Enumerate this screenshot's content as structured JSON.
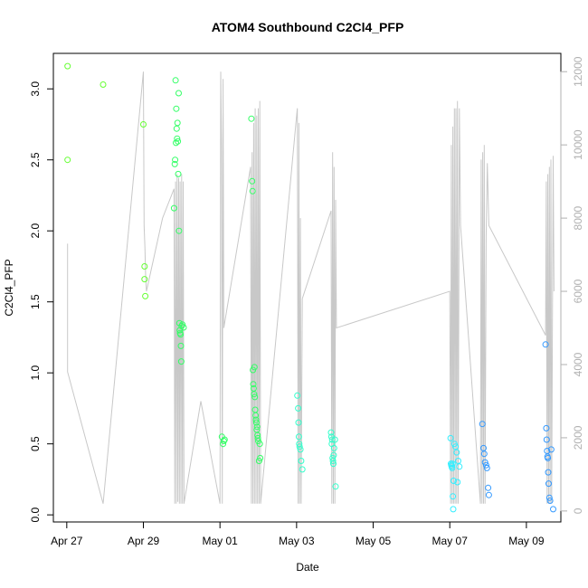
{
  "chart_data": {
    "type": "scatter",
    "title": "ATOM4 Southbound C2Cl4_PFP",
    "xlabel": "Date",
    "ylabel": "C2Cl4_PFP",
    "x_ticks": [
      "Apr 27",
      "Apr 29",
      "May 01",
      "May 03",
      "May 05",
      "May 07",
      "May 09"
    ],
    "x_tick_days": [
      0,
      2,
      4,
      6,
      8,
      10,
      12
    ],
    "xlim_days": [
      -0.35,
      12.9
    ],
    "ylim": [
      -0.05,
      3.25
    ],
    "y_ticks": [
      0.0,
      0.5,
      1.0,
      1.5,
      2.0,
      2.5,
      3.0
    ],
    "y_tick_labels": [
      "0.0",
      "0.5",
      "1.0",
      "1.5",
      "2.0",
      "2.5",
      "3.0"
    ],
    "y2lim": [
      -300,
      12500
    ],
    "y2_ticks": [
      0,
      2000,
      4000,
      6000,
      8000,
      10000,
      12000
    ],
    "y2_tick_labels": [
      "0",
      "2000",
      "4000",
      "6000",
      "8000",
      "10000",
      "12000"
    ],
    "grid": false,
    "colors": {
      "secondary_line": "#c8c8c8",
      "axis": "#000000",
      "right_axis": "#b0b0b0",
      "point_scale": [
        "#66ff33",
        "#33ff66",
        "#33ffcc",
        "#33eeff",
        "#3399ff"
      ]
    },
    "series": [
      {
        "values_x": [
          0.02,
          0.02,
          0.95,
          2.0,
          2.03,
          2.03,
          2.05,
          2.8,
          2.82,
          2.83,
          2.84,
          2.85,
          2.86,
          2.87,
          2.88,
          2.89,
          2.9,
          2.91,
          2.92,
          2.93,
          2.94,
          2.95,
          2.96,
          2.97,
          2.98,
          2.99,
          3.0,
          3.02,
          3.05,
          4.05,
          4.08,
          4.1,
          4.12,
          4.82,
          4.84,
          4.85,
          4.86,
          4.87,
          4.88,
          4.89,
          4.9,
          4.91,
          4.92,
          4.93,
          4.94,
          4.95,
          4.96,
          4.97,
          4.98,
          4.99,
          5.0,
          5.02,
          5.04,
          5.05,
          6.02,
          6.04,
          6.05,
          6.06,
          6.07,
          6.08,
          6.1,
          6.12,
          6.15,
          6.9,
          6.91,
          6.92,
          6.93,
          6.94,
          6.95,
          6.96,
          6.97,
          6.98,
          7.0,
          7.02,
          10.02,
          10.03,
          10.04,
          10.05,
          10.06,
          10.07,
          10.08,
          10.09,
          10.1,
          10.12,
          10.15,
          10.18,
          10.2,
          10.22,
          10.25,
          10.85,
          10.88,
          10.9,
          10.92,
          10.95,
          10.97,
          11.0,
          11.02,
          12.5,
          12.52,
          12.53,
          12.54,
          12.55,
          12.56,
          12.57,
          12.58,
          12.6,
          12.62,
          12.65,
          12.7
        ],
        "values_y": [
          3.16,
          2.5,
          3.03,
          2.75,
          1.75,
          1.66,
          1.54,
          2.16,
          2.47,
          2.5,
          3.06,
          2.62,
          2.86,
          2.72,
          2.65,
          2.76,
          2.63,
          2.4,
          2.97,
          2.0,
          1.35,
          1.3,
          1.28,
          1.27,
          1.19,
          1.08,
          1.33,
          1.34,
          1.32,
          0.55,
          0.5,
          0.52,
          0.53,
          2.79,
          2.35,
          2.28,
          1.02,
          0.92,
          0.89,
          0.85,
          1.04,
          0.83,
          0.74,
          0.7,
          0.67,
          0.65,
          0.6,
          0.62,
          0.56,
          0.54,
          0.52,
          0.38,
          0.5,
          0.4,
          0.84,
          0.75,
          0.65,
          0.55,
          0.5,
          0.48,
          0.46,
          0.38,
          0.32,
          0.58,
          0.55,
          0.5,
          0.53,
          0.4,
          0.38,
          0.36,
          0.42,
          0.47,
          0.53,
          0.2,
          0.54,
          0.36,
          0.35,
          0.34,
          0.33,
          0.36,
          0.13,
          0.04,
          0.24,
          0.5,
          0.48,
          0.44,
          0.23,
          0.38,
          0.34,
          0.64,
          0.47,
          0.43,
          0.37,
          0.35,
          0.33,
          0.19,
          0.14,
          1.2,
          0.61,
          0.53,
          0.45,
          0.41,
          0.4,
          0.3,
          0.22,
          0.12,
          0.1,
          0.46,
          0.04
        ]
      }
    ],
    "secondary_line": {
      "axis": "right",
      "x": [
        0.02,
        0.02,
        0.02,
        0.95,
        0.95,
        2.0,
        2.02,
        2.04,
        2.06,
        2.08,
        2.5,
        2.8,
        2.82,
        2.84,
        2.86,
        2.88,
        2.9,
        2.92,
        2.94,
        2.96,
        2.98,
        3.0,
        3.02,
        3.04,
        3.06,
        3.5,
        4.0,
        4.02,
        4.04,
        4.06,
        4.08,
        4.1,
        4.8,
        4.82,
        4.84,
        4.86,
        4.88,
        4.9,
        4.92,
        4.94,
        4.96,
        4.98,
        5.0,
        5.02,
        5.04,
        5.06,
        6.0,
        6.02,
        6.04,
        6.06,
        6.08,
        6.1,
        6.12,
        6.15,
        6.9,
        6.92,
        6.94,
        6.96,
        6.98,
        7.0,
        7.02,
        7.04,
        10.0,
        10.02,
        10.04,
        10.06,
        10.08,
        10.1,
        10.12,
        10.14,
        10.16,
        10.18,
        10.2,
        10.22,
        10.25,
        10.28,
        10.8,
        10.82,
        10.84,
        10.86,
        10.88,
        10.9,
        10.92,
        10.95,
        10.98,
        11.02,
        12.5,
        12.52,
        12.54,
        12.56,
        12.58,
        12.6,
        12.62,
        12.64,
        12.66,
        12.7,
        12.72
      ],
      "y": [
        7300,
        7300,
        3800,
        200,
        200,
        12000,
        7800,
        7200,
        6400,
        6000,
        8000,
        8800,
        200,
        9000,
        200,
        9200,
        250,
        9100,
        200,
        9000,
        200,
        9200,
        200,
        9000,
        200,
        3000,
        200,
        12000,
        10000,
        200,
        11800,
        5000,
        9400,
        200,
        9800,
        200,
        10600,
        200,
        11000,
        200,
        10800,
        200,
        11000,
        200,
        11200,
        200,
        10800,
        11000,
        200,
        10600,
        200,
        8000,
        200,
        5800,
        8200,
        200,
        9800,
        200,
        9400,
        200,
        8500,
        5000,
        6000,
        200,
        10000,
        200,
        10500,
        200,
        11000,
        200,
        11000,
        200,
        11200,
        200,
        11000,
        7800,
        200,
        9600,
        200,
        9800,
        200,
        10000,
        200,
        7500,
        9500,
        7800,
        4800,
        9000,
        200,
        9200,
        200,
        9400,
        200,
        9600,
        200,
        9700,
        6000
      ]
    }
  }
}
